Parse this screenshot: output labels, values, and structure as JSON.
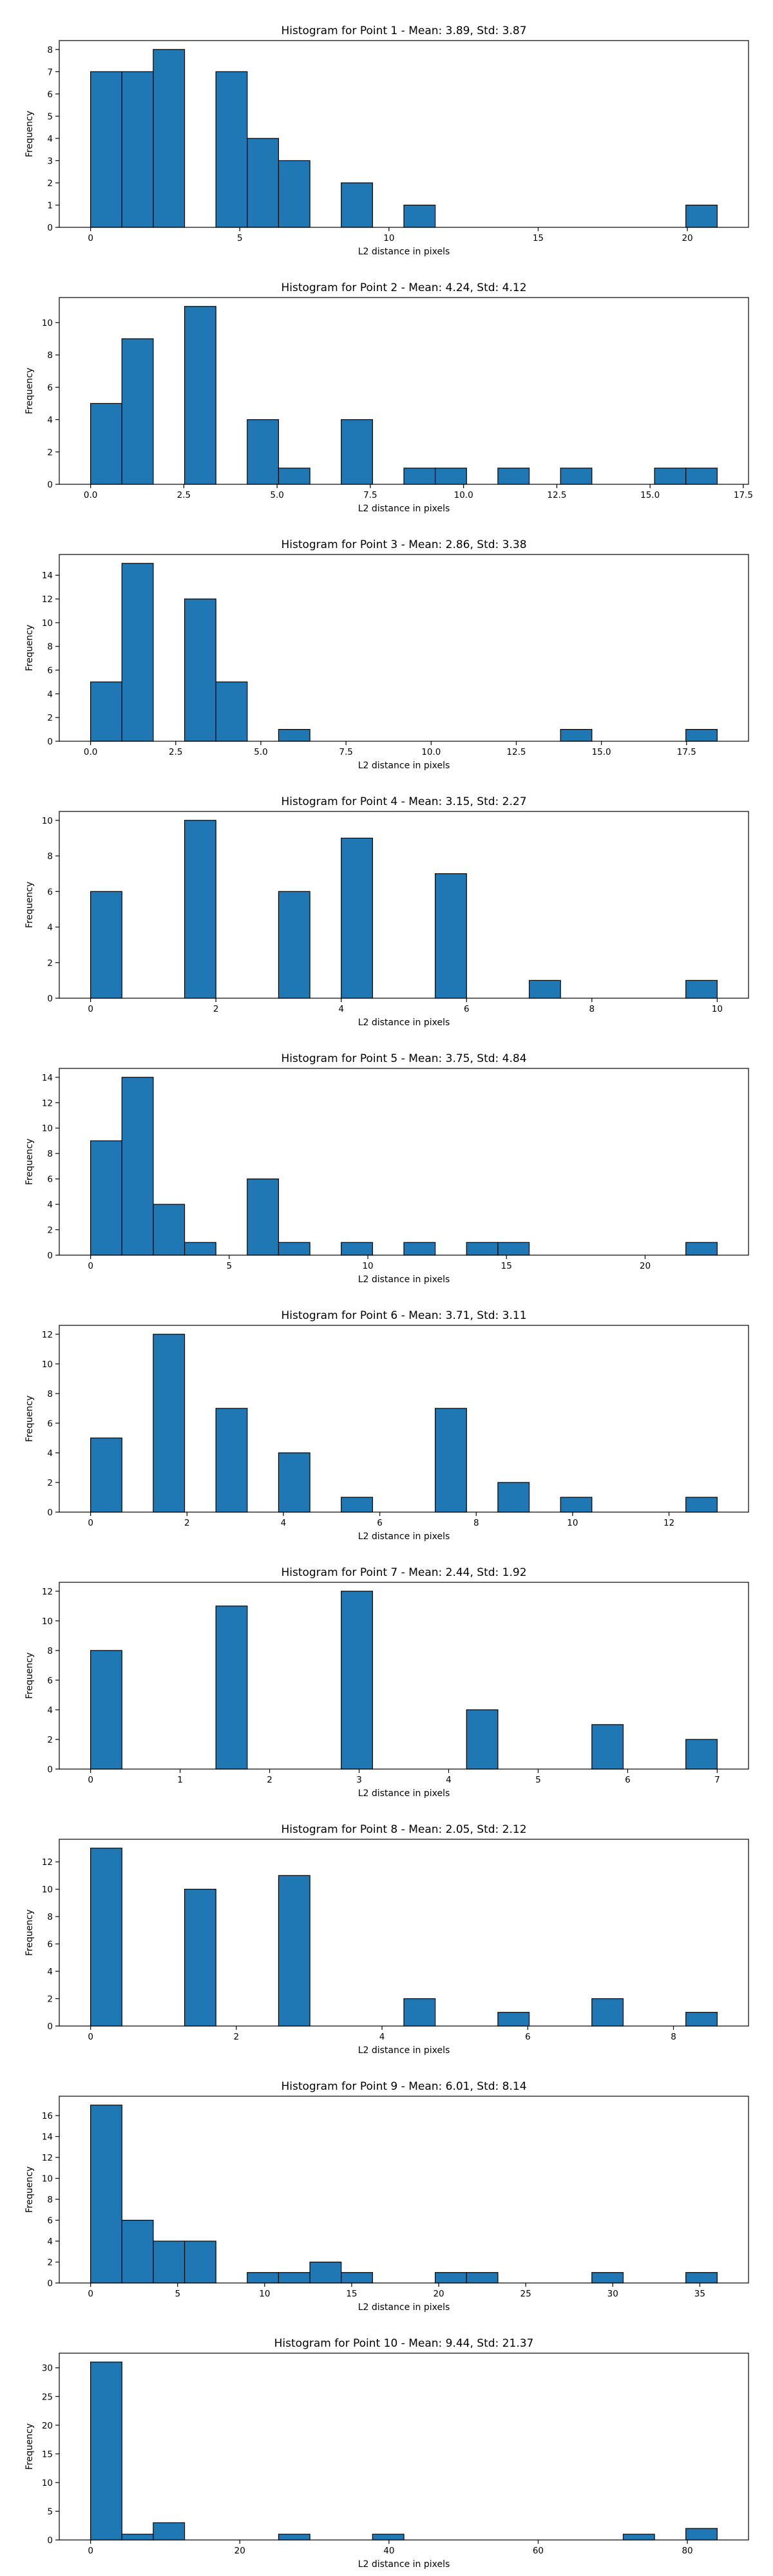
{
  "chart_data": [
    {
      "type": "bar",
      "title": "Histogram for Point 1 - Mean: 3.89, Std: 3.87",
      "xlabel": "L2 distance in pixels",
      "ylabel": "Frequency",
      "xlim": [
        -1.05,
        22.05
      ],
      "ylim": [
        0,
        8.4
      ],
      "xticks": [
        0,
        5,
        10,
        15,
        20
      ],
      "xtick_labels": [
        "0",
        "5",
        "10",
        "15",
        "20"
      ],
      "yticks": [
        0,
        1,
        2,
        3,
        4,
        5,
        6,
        7,
        8
      ],
      "ytick_labels": [
        "0",
        "1",
        "2",
        "3",
        "4",
        "5",
        "6",
        "7",
        "8"
      ],
      "bin_edges": [
        0,
        1.05,
        2.1,
        3.15,
        4.2,
        5.25,
        6.3,
        7.35,
        8.4,
        9.45,
        10.5,
        11.55,
        12.6,
        13.65,
        14.7,
        15.75,
        16.8,
        17.85,
        18.9,
        19.95,
        21.0
      ],
      "counts": [
        7,
        7,
        8,
        0,
        7,
        4,
        3,
        0,
        2,
        0,
        1,
        0,
        0,
        0,
        0,
        0,
        0,
        0,
        0,
        1
      ],
      "color": "#1f77b4"
    },
    {
      "type": "bar",
      "title": "Histogram for Point 2 - Mean: 4.24, Std: 4.12",
      "xlabel": "L2 distance in pixels",
      "ylabel": "Frequency",
      "xlim": [
        -0.84,
        17.64
      ],
      "ylim": [
        0,
        11.55
      ],
      "xticks": [
        0,
        2.5,
        5,
        7.5,
        10,
        12.5,
        15,
        17.5
      ],
      "xtick_labels": [
        "0.0",
        "2.5",
        "5.0",
        "7.5",
        "10.0",
        "12.5",
        "15.0",
        "17.5"
      ],
      "yticks": [
        0,
        2,
        4,
        6,
        8,
        10
      ],
      "ytick_labels": [
        "0",
        "2",
        "4",
        "6",
        "8",
        "10"
      ],
      "bin_edges": [
        0,
        0.84,
        1.68,
        2.52,
        3.36,
        4.2,
        5.04,
        5.88,
        6.72,
        7.56,
        8.4,
        9.24,
        10.08,
        10.92,
        11.76,
        12.6,
        13.44,
        14.28,
        15.12,
        15.96,
        16.8
      ],
      "counts": [
        5,
        9,
        0,
        11,
        0,
        4,
        1,
        0,
        4,
        0,
        1,
        1,
        0,
        1,
        0,
        1,
        0,
        0,
        1,
        1
      ],
      "color": "#1f77b4"
    },
    {
      "type": "bar",
      "title": "Histogram for Point 3 - Mean: 2.86, Std: 3.38",
      "xlabel": "L2 distance in pixels",
      "ylabel": "Frequency",
      "xlim": [
        -0.92,
        19.32
      ],
      "ylim": [
        0,
        15.75
      ],
      "xticks": [
        0,
        2.5,
        5,
        7.5,
        10,
        12.5,
        15,
        17.5
      ],
      "xtick_labels": [
        "0.0",
        "2.5",
        "5.0",
        "7.5",
        "10.0",
        "12.5",
        "15.0",
        "17.5"
      ],
      "yticks": [
        0,
        2,
        4,
        6,
        8,
        10,
        12,
        14
      ],
      "ytick_labels": [
        "0",
        "2",
        "4",
        "6",
        "8",
        "10",
        "12",
        "14"
      ],
      "bin_edges": [
        0,
        0.92,
        1.84,
        2.76,
        3.68,
        4.6,
        5.52,
        6.44,
        7.36,
        8.28,
        9.2,
        10.12,
        11.04,
        11.96,
        12.88,
        13.8,
        14.72,
        15.64,
        16.56,
        17.48,
        18.4
      ],
      "counts": [
        5,
        15,
        0,
        12,
        5,
        0,
        1,
        0,
        0,
        0,
        0,
        0,
        0,
        0,
        0,
        1,
        0,
        0,
        0,
        1
      ],
      "color": "#1f77b4"
    },
    {
      "type": "bar",
      "title": "Histogram for Point 4 - Mean: 3.15, Std: 2.27",
      "xlabel": "L2 distance in pixels",
      "ylabel": "Frequency",
      "xlim": [
        -0.5,
        10.5
      ],
      "ylim": [
        0,
        10.5
      ],
      "xticks": [
        0,
        2,
        4,
        6,
        8,
        10
      ],
      "xtick_labels": [
        "0",
        "2",
        "4",
        "6",
        "8",
        "10"
      ],
      "yticks": [
        0,
        2,
        4,
        6,
        8,
        10
      ],
      "ytick_labels": [
        "0",
        "2",
        "4",
        "6",
        "8",
        "10"
      ],
      "bin_edges": [
        0,
        0.5,
        1.0,
        1.5,
        2.0,
        2.5,
        3.0,
        3.5,
        4.0,
        4.5,
        5.0,
        5.5,
        6.0,
        6.5,
        7.0,
        7.5,
        8.0,
        8.5,
        9.0,
        9.5,
        10.0
      ],
      "counts": [
        6,
        0,
        0,
        10,
        0,
        0,
        6,
        0,
        9,
        0,
        0,
        7,
        0,
        0,
        1,
        0,
        0,
        0,
        0,
        1
      ],
      "color": "#1f77b4"
    },
    {
      "type": "bar",
      "title": "Histogram for Point 5 - Mean: 3.75, Std: 4.84",
      "xlabel": "L2 distance in pixels",
      "ylabel": "Frequency",
      "xlim": [
        -1.13,
        23.73
      ],
      "ylim": [
        0,
        14.7
      ],
      "xticks": [
        0,
        5,
        10,
        15,
        20
      ],
      "xtick_labels": [
        "0",
        "5",
        "10",
        "15",
        "20"
      ],
      "yticks": [
        0,
        2,
        4,
        6,
        8,
        10,
        12,
        14
      ],
      "ytick_labels": [
        "0",
        "2",
        "4",
        "6",
        "8",
        "10",
        "12",
        "14"
      ],
      "bin_edges": [
        0,
        1.13,
        2.26,
        3.39,
        4.52,
        5.65,
        6.78,
        7.91,
        9.04,
        10.17,
        11.3,
        12.43,
        13.56,
        14.69,
        15.82,
        16.95,
        18.08,
        19.21,
        20.34,
        21.47,
        22.6
      ],
      "counts": [
        9,
        14,
        4,
        1,
        0,
        6,
        1,
        0,
        1,
        0,
        1,
        0,
        1,
        1,
        0,
        0,
        0,
        0,
        0,
        1
      ],
      "color": "#1f77b4"
    },
    {
      "type": "bar",
      "title": "Histogram for Point 6 - Mean: 3.71, Std: 3.11",
      "xlabel": "L2 distance in pixels",
      "ylabel": "Frequency",
      "xlim": [
        -0.65,
        13.65
      ],
      "ylim": [
        0,
        12.6
      ],
      "xticks": [
        0,
        2,
        4,
        6,
        8,
        10,
        12
      ],
      "xtick_labels": [
        "0",
        "2",
        "4",
        "6",
        "8",
        "10",
        "12"
      ],
      "yticks": [
        0,
        2,
        4,
        6,
        8,
        10,
        12
      ],
      "ytick_labels": [
        "0",
        "2",
        "4",
        "6",
        "8",
        "10",
        "12"
      ],
      "bin_edges": [
        0,
        0.65,
        1.3,
        1.95,
        2.6,
        3.25,
        3.9,
        4.55,
        5.2,
        5.85,
        6.5,
        7.15,
        7.8,
        8.45,
        9.1,
        9.75,
        10.4,
        11.05,
        11.7,
        12.35,
        13.0
      ],
      "counts": [
        5,
        0,
        12,
        0,
        7,
        0,
        4,
        0,
        1,
        0,
        0,
        7,
        0,
        2,
        0,
        1,
        0,
        0,
        0,
        1
      ],
      "color": "#1f77b4"
    },
    {
      "type": "bar",
      "title": "Histogram for Point 7 - Mean: 2.44, Std: 1.92",
      "xlabel": "L2 distance in pixels",
      "ylabel": "Frequency",
      "xlim": [
        -0.35,
        7.35
      ],
      "ylim": [
        0,
        12.6
      ],
      "xticks": [
        0,
        1,
        2,
        3,
        4,
        5,
        6,
        7
      ],
      "xtick_labels": [
        "0",
        "1",
        "2",
        "3",
        "4",
        "5",
        "6",
        "7"
      ],
      "yticks": [
        0,
        2,
        4,
        6,
        8,
        10,
        12
      ],
      "ytick_labels": [
        "0",
        "2",
        "4",
        "6",
        "8",
        "10",
        "12"
      ],
      "bin_edges": [
        0,
        0.35,
        0.7,
        1.05,
        1.4,
        1.75,
        2.1,
        2.45,
        2.8,
        3.15,
        3.5,
        3.85,
        4.2,
        4.55,
        4.9,
        5.25,
        5.6,
        5.95,
        6.3,
        6.65,
        7.0
      ],
      "counts": [
        8,
        0,
        0,
        0,
        11,
        0,
        0,
        0,
        12,
        0,
        0,
        0,
        4,
        0,
        0,
        0,
        3,
        0,
        0,
        2
      ],
      "color": "#1f77b4"
    },
    {
      "type": "bar",
      "title": "Histogram for Point 8 - Mean: 2.05, Std: 2.12",
      "xlabel": "L2 distance in pixels",
      "ylabel": "Frequency",
      "xlim": [
        -0.43,
        9.03
      ],
      "ylim": [
        0,
        13.65
      ],
      "xticks": [
        0,
        2,
        4,
        6,
        8
      ],
      "xtick_labels": [
        "0",
        "2",
        "4",
        "6",
        "8"
      ],
      "yticks": [
        0,
        2,
        4,
        6,
        8,
        10,
        12
      ],
      "ytick_labels": [
        "0",
        "2",
        "4",
        "6",
        "8",
        "10",
        "12"
      ],
      "bin_edges": [
        0,
        0.43,
        0.86,
        1.29,
        1.72,
        2.15,
        2.58,
        3.01,
        3.44,
        3.87,
        4.3,
        4.73,
        5.16,
        5.59,
        6.02,
        6.45,
        6.88,
        7.31,
        7.74,
        8.17,
        8.6
      ],
      "counts": [
        13,
        0,
        0,
        10,
        0,
        0,
        11,
        0,
        0,
        0,
        2,
        0,
        0,
        1,
        0,
        0,
        2,
        0,
        0,
        1
      ],
      "color": "#1f77b4"
    },
    {
      "type": "bar",
      "title": "Histogram for Point 9 - Mean: 6.01, Std: 8.14",
      "xlabel": "L2 distance in pixels",
      "ylabel": "Frequency",
      "xlim": [
        -1.8,
        37.8
      ],
      "ylim": [
        0,
        17.85
      ],
      "xticks": [
        0,
        5,
        10,
        15,
        20,
        25,
        30,
        35
      ],
      "xtick_labels": [
        "0",
        "5",
        "10",
        "15",
        "20",
        "25",
        "30",
        "35"
      ],
      "yticks": [
        0,
        2,
        4,
        6,
        8,
        10,
        12,
        14,
        16
      ],
      "ytick_labels": [
        "0",
        "2",
        "4",
        "6",
        "8",
        "10",
        "12",
        "14",
        "16"
      ],
      "bin_edges": [
        0,
        1.8,
        3.6,
        5.4,
        7.2,
        9.0,
        10.8,
        12.6,
        14.4,
        16.2,
        18.0,
        19.8,
        21.6,
        23.4,
        25.2,
        27.0,
        28.8,
        30.6,
        32.4,
        34.2,
        36.0
      ],
      "counts": [
        17,
        6,
        4,
        4,
        0,
        1,
        1,
        2,
        1,
        0,
        0,
        1,
        1,
        0,
        0,
        0,
        1,
        0,
        0,
        1
      ],
      "color": "#1f77b4"
    },
    {
      "type": "bar",
      "title": "Histogram for Point 10 - Mean: 9.44, Std: 21.37",
      "xlabel": "L2 distance in pixels",
      "ylabel": "Frequency",
      "xlim": [
        -4.2,
        88.2
      ],
      "ylim": [
        0,
        32.55
      ],
      "xticks": [
        0,
        20,
        40,
        60,
        80
      ],
      "xtick_labels": [
        "0",
        "20",
        "40",
        "60",
        "80"
      ],
      "yticks": [
        0,
        5,
        10,
        15,
        20,
        25,
        30
      ],
      "ytick_labels": [
        "0",
        "5",
        "10",
        "15",
        "20",
        "25",
        "30"
      ],
      "bin_edges": [
        0,
        4.2,
        8.4,
        12.6,
        16.8,
        21.0,
        25.2,
        29.4,
        33.6,
        37.8,
        42.0,
        46.2,
        50.4,
        54.6,
        58.8,
        63.0,
        67.2,
        71.4,
        75.6,
        79.8,
        84.0
      ],
      "counts": [
        31,
        1,
        3,
        0,
        0,
        0,
        1,
        0,
        0,
        1,
        0,
        0,
        0,
        0,
        0,
        0,
        0,
        1,
        0,
        2
      ],
      "color": "#1f77b4"
    }
  ]
}
